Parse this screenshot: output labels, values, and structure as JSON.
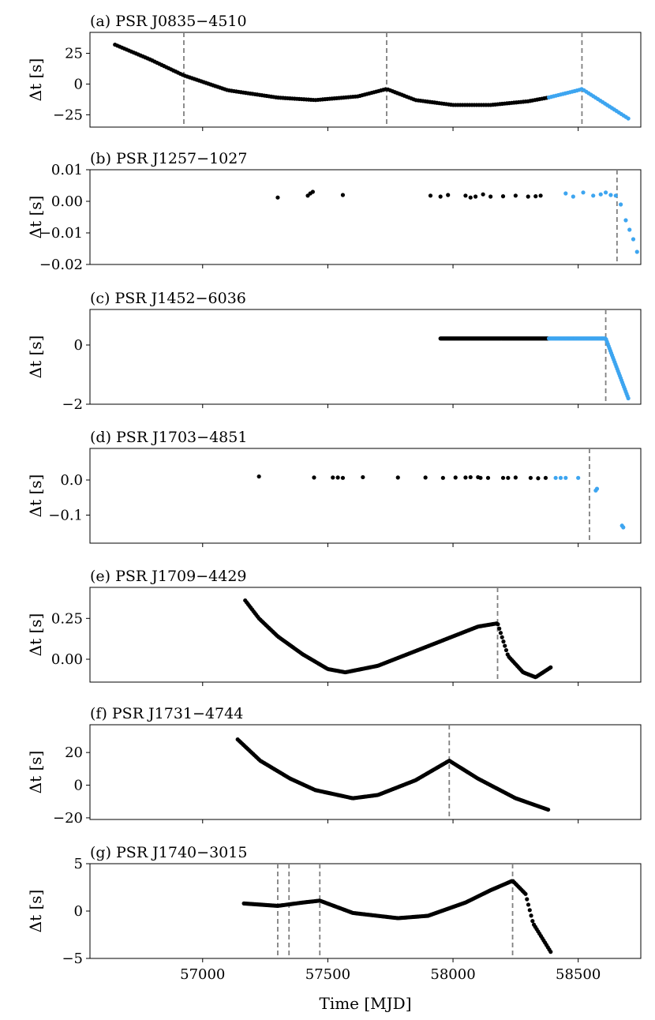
{
  "figure": {
    "xlabel": "Time [MJD]",
    "colors": {
      "pre": "#000000",
      "post": "#3da5f0",
      "glitch_line": "#808080"
    }
  },
  "chart_data": [
    {
      "type": "scatter",
      "title": "(a) PSR J0835−4510",
      "ylabel": "Δt [s]",
      "xlim": [
        56550,
        58750
      ],
      "ylim": [
        -35,
        42
      ],
      "yticks": [
        25,
        0,
        -25
      ],
      "ytick_labels": [
        "25",
        "0",
        "−25"
      ],
      "glitches": [
        56925,
        57735,
        58515
      ],
      "post_start": 58380,
      "data_mode": "curve",
      "curve": [
        [
          56650,
          32
        ],
        [
          56790,
          20
        ],
        [
          56925,
          7
        ],
        [
          57100,
          -5
        ],
        [
          57300,
          -11
        ],
        [
          57450,
          -13
        ],
        [
          57620,
          -10
        ],
        [
          57735,
          -4
        ],
        [
          57850,
          -13
        ],
        [
          58000,
          -17
        ],
        [
          58150,
          -17
        ],
        [
          58300,
          -14
        ],
        [
          58380,
          -11
        ],
        [
          58500,
          -5
        ],
        [
          58515,
          -4
        ],
        [
          58600,
          -15
        ],
        [
          58700,
          -28
        ]
      ]
    },
    {
      "type": "scatter",
      "title": "(b) PSR J1257−1027",
      "ylabel": "Δt [s]",
      "xlim": [
        56550,
        58750
      ],
      "ylim": [
        -0.02,
        0.01
      ],
      "yticks": [
        0.01,
        0.0,
        -0.01,
        -0.02
      ],
      "ytick_labels": [
        "0.01",
        "0.00",
        "−0.01",
        "−0.02"
      ],
      "glitches": [
        58655
      ],
      "post_start": 58440,
      "data_mode": "points",
      "points": [
        [
          57300,
          0.0012
        ],
        [
          57420,
          0.0018
        ],
        [
          57430,
          0.0025
        ],
        [
          57440,
          0.003
        ],
        [
          57560,
          0.002
        ],
        [
          57910,
          0.0018
        ],
        [
          57950,
          0.0015
        ],
        [
          57980,
          0.002
        ],
        [
          58050,
          0.0018
        ],
        [
          58070,
          0.0012
        ],
        [
          58090,
          0.0015
        ],
        [
          58120,
          0.0022
        ],
        [
          58150,
          0.0015
        ],
        [
          58200,
          0.0016
        ],
        [
          58250,
          0.0018
        ],
        [
          58300,
          0.0015
        ],
        [
          58330,
          0.0016
        ],
        [
          58350,
          0.0018
        ],
        [
          58450,
          0.0025
        ],
        [
          58480,
          0.0015
        ],
        [
          58520,
          0.0028
        ],
        [
          58560,
          0.0018
        ],
        [
          58590,
          0.0022
        ],
        [
          58610,
          0.0028
        ],
        [
          58630,
          0.002
        ],
        [
          58650,
          0.0018
        ],
        [
          58670,
          -0.001
        ],
        [
          58690,
          -0.006
        ],
        [
          58705,
          -0.009
        ],
        [
          58720,
          -0.012
        ],
        [
          58735,
          -0.016
        ]
      ]
    },
    {
      "type": "scatter",
      "title": "(c) PSR J1452−6036",
      "ylabel": "Δt [s]",
      "xlim": [
        56550,
        58750
      ],
      "ylim": [
        -2,
        1.2
      ],
      "yticks": [
        0,
        -2
      ],
      "ytick_labels": [
        "0",
        "−2"
      ],
      "glitches": [
        58610
      ],
      "post_start": 58380,
      "data_mode": "curve",
      "curve": [
        [
          57950,
          0.22
        ],
        [
          58000,
          0.22
        ],
        [
          58040,
          0.22
        ],
        [
          58130,
          0.22
        ],
        [
          58250,
          0.22
        ],
        [
          58380,
          0.22
        ],
        [
          58500,
          0.22
        ],
        [
          58610,
          0.22
        ],
        [
          58700,
          -1.8
        ]
      ]
    },
    {
      "type": "scatter",
      "title": "(d) PSR J1703−4851",
      "ylabel": "Δt [s]",
      "xlim": [
        56550,
        58750
      ],
      "ylim": [
        -0.18,
        0.09
      ],
      "yticks": [
        0.0,
        -0.1
      ],
      "ytick_labels": [
        "0.0",
        "−0.1"
      ],
      "glitches": [
        58545
      ],
      "post_start": 58390,
      "data_mode": "points",
      "points": [
        [
          57225,
          0.01
        ],
        [
          57445,
          0.007
        ],
        [
          57520,
          0.007
        ],
        [
          57540,
          0.007
        ],
        [
          57560,
          0.006
        ],
        [
          57640,
          0.008
        ],
        [
          57780,
          0.007
        ],
        [
          57890,
          0.007
        ],
        [
          57960,
          0.006
        ],
        [
          58010,
          0.007
        ],
        [
          58050,
          0.007
        ],
        [
          58070,
          0.008
        ],
        [
          58100,
          0.008
        ],
        [
          58110,
          0.006
        ],
        [
          58140,
          0.006
        ],
        [
          58200,
          0.006
        ],
        [
          58220,
          0.006
        ],
        [
          58250,
          0.007
        ],
        [
          58310,
          0.006
        ],
        [
          58340,
          0.005
        ],
        [
          58370,
          0.006
        ],
        [
          58410,
          0.006
        ],
        [
          58430,
          0.006
        ],
        [
          58450,
          0.006
        ],
        [
          58500,
          0.006
        ],
        [
          58570,
          -0.03
        ],
        [
          58575,
          -0.025
        ],
        [
          58675,
          -0.13
        ],
        [
          58680,
          -0.135
        ]
      ]
    },
    {
      "type": "scatter",
      "title": "(e) PSR J1709−4429",
      "ylabel": "Δt [s]",
      "xlim": [
        56550,
        58750
      ],
      "ylim": [
        -0.14,
        0.44
      ],
      "yticks": [
        0.25,
        0.0
      ],
      "ytick_labels": [
        "0.25",
        "0.00"
      ],
      "glitches": [
        58178
      ],
      "post_start": null,
      "data_mode": "curve",
      "curve": [
        [
          57170,
          0.36
        ],
        [
          57225,
          0.25
        ],
        [
          57300,
          0.14
        ],
        [
          57400,
          0.03
        ],
        [
          57500,
          -0.06
        ],
        [
          57570,
          -0.08
        ],
        [
          57700,
          -0.04
        ],
        [
          57850,
          0.05
        ],
        [
          58000,
          0.14
        ],
        [
          58100,
          0.2
        ],
        [
          58178,
          0.22
        ],
        [
          58220,
          0.02
        ],
        [
          58280,
          -0.08
        ],
        [
          58330,
          -0.11
        ],
        [
          58390,
          -0.05
        ]
      ]
    },
    {
      "type": "scatter",
      "title": "(f) PSR J1731−4744",
      "ylabel": "Δt [s]",
      "xlim": [
        56550,
        58750
      ],
      "ylim": [
        -21,
        37
      ],
      "yticks": [
        20,
        0,
        -20
      ],
      "ytick_labels": [
        "20",
        "0",
        "−20"
      ],
      "glitches": [
        57985
      ],
      "post_start": null,
      "data_mode": "curve",
      "curve": [
        [
          57140,
          28
        ],
        [
          57230,
          15
        ],
        [
          57350,
          4
        ],
        [
          57450,
          -3
        ],
        [
          57600,
          -8
        ],
        [
          57700,
          -6
        ],
        [
          57850,
          3
        ],
        [
          57985,
          15
        ],
        [
          58100,
          4
        ],
        [
          58250,
          -8
        ],
        [
          58380,
          -15
        ]
      ]
    },
    {
      "type": "scatter",
      "title": "(g) PSR J1740−3015",
      "ylabel": "Δt [s]",
      "xlim": [
        56550,
        58750
      ],
      "ylim": [
        -5,
        5
      ],
      "yticks": [
        5,
        0,
        -5
      ],
      "ytick_labels": [
        "5",
        "0",
        "−5"
      ],
      "glitches": [
        57300,
        57345,
        57468,
        58238
      ],
      "post_start": null,
      "data_mode": "curve",
      "curve": [
        [
          57165,
          0.8
        ],
        [
          57300,
          0.55
        ],
        [
          57400,
          0.9
        ],
        [
          57468,
          1.1
        ],
        [
          57600,
          -0.2
        ],
        [
          57780,
          -0.75
        ],
        [
          57900,
          -0.5
        ],
        [
          58050,
          0.9
        ],
        [
          58150,
          2.2
        ],
        [
          58238,
          3.2
        ],
        [
          58290,
          1.8
        ],
        [
          58320,
          -1.3
        ],
        [
          58390,
          -4.3
        ]
      ]
    },
    {
      "type": "axis",
      "xticks": [
        57000,
        57500,
        58000,
        58500
      ],
      "xtick_labels": [
        "57000",
        "57500",
        "58000",
        "58500"
      ]
    }
  ]
}
